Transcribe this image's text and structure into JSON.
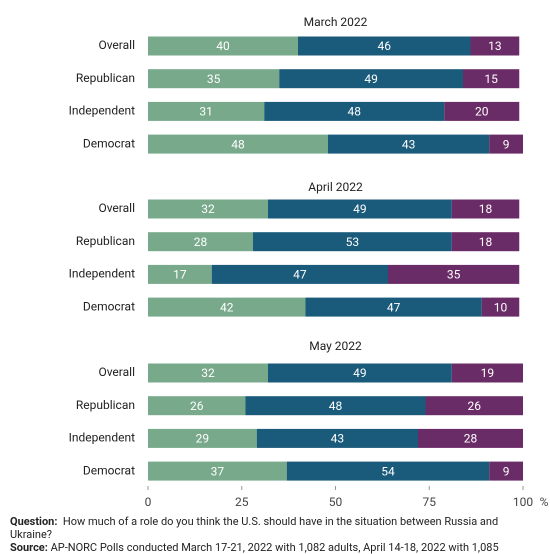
{
  "chart_data": [
    {
      "type": "bar",
      "orientation": "horizontal",
      "stacked": true,
      "title": "March 2022",
      "categories": [
        "Overall",
        "Republican",
        "Independent",
        "Democrat"
      ],
      "series": [
        {
          "color": "#78a98b",
          "values": [
            40,
            35,
            31,
            48
          ]
        },
        {
          "color": "#1a5a7a",
          "values": [
            46,
            49,
            48,
            43
          ]
        },
        {
          "color": "#6a2c66",
          "values": [
            13,
            15,
            20,
            9
          ]
        }
      ],
      "xlim": [
        0,
        100
      ]
    },
    {
      "type": "bar",
      "orientation": "horizontal",
      "stacked": true,
      "title": "April 2022",
      "categories": [
        "Overall",
        "Republican",
        "Independent",
        "Democrat"
      ],
      "series": [
        {
          "color": "#78a98b",
          "values": [
            32,
            28,
            17,
            42
          ]
        },
        {
          "color": "#1a5a7a",
          "values": [
            49,
            53,
            47,
            47
          ]
        },
        {
          "color": "#6a2c66",
          "values": [
            18,
            18,
            35,
            10
          ]
        }
      ],
      "xlim": [
        0,
        100
      ]
    },
    {
      "type": "bar",
      "orientation": "horizontal",
      "stacked": true,
      "title": "May 2022",
      "categories": [
        "Overall",
        "Republican",
        "Independent",
        "Democrat"
      ],
      "series": [
        {
          "color": "#78a98b",
          "values": [
            32,
            26,
            29,
            37
          ]
        },
        {
          "color": "#1a5a7a",
          "values": [
            49,
            48,
            43,
            54
          ]
        },
        {
          "color": "#6a2c66",
          "values": [
            19,
            26,
            28,
            9
          ]
        }
      ],
      "xlim": [
        0,
        100
      ],
      "xticks": [
        0,
        25,
        50,
        75,
        100
      ],
      "xlabel": "%"
    }
  ],
  "notes": {
    "question_label": "Question:",
    "question": "How much of a role do you think the U.S. should have in the situation between Russia and Ukraine?",
    "source_label": "Source:",
    "source": "AP-NORC Polls conducted March 17-21, 2022 with 1,082 adults, April 14-18, 2022 with 1,085"
  }
}
